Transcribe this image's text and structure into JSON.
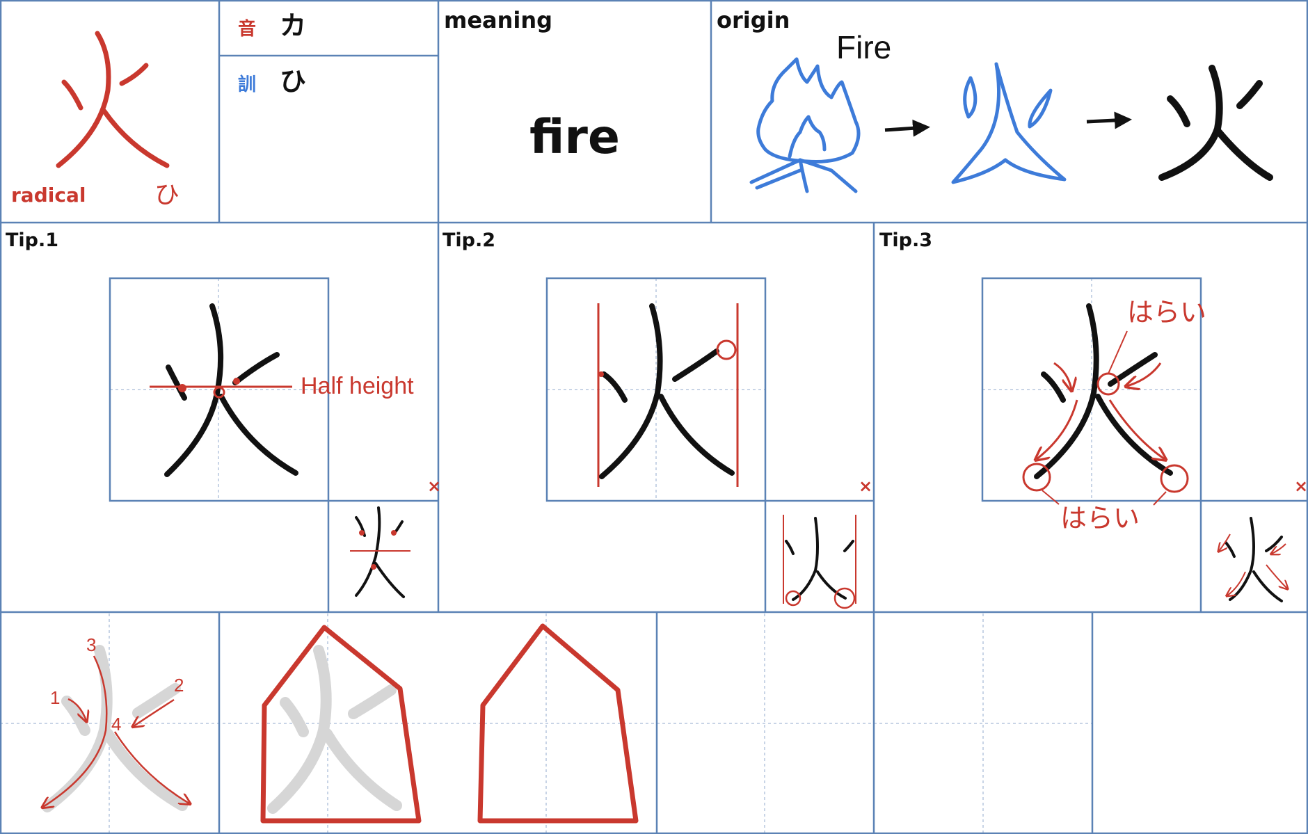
{
  "kanji": "火",
  "radical": {
    "label": "radical",
    "reading": "ひ"
  },
  "on": {
    "label": "音",
    "reading": "カ"
  },
  "kun": {
    "label": "訓",
    "reading": "ひ"
  },
  "meaning": {
    "label": "meaning",
    "value": "fire"
  },
  "origin": {
    "label": "origin",
    "caption": "Fire"
  },
  "tips": {
    "tip1": {
      "label": "Tip.1",
      "note": "Half height"
    },
    "tip2": {
      "label": "Tip.2"
    },
    "tip3": {
      "label": "Tip.3",
      "top_note": "はらい",
      "bottom_note": "はらい"
    }
  },
  "cross_mark": "×",
  "stroke_numbers": [
    "1",
    "2",
    "3",
    "4"
  ],
  "colors": {
    "grid": "#5b82b5",
    "guide": "#c8d4e6",
    "red": "#c9382e",
    "blue": "#3d7bd9",
    "ghost": "#d6d6d6"
  }
}
